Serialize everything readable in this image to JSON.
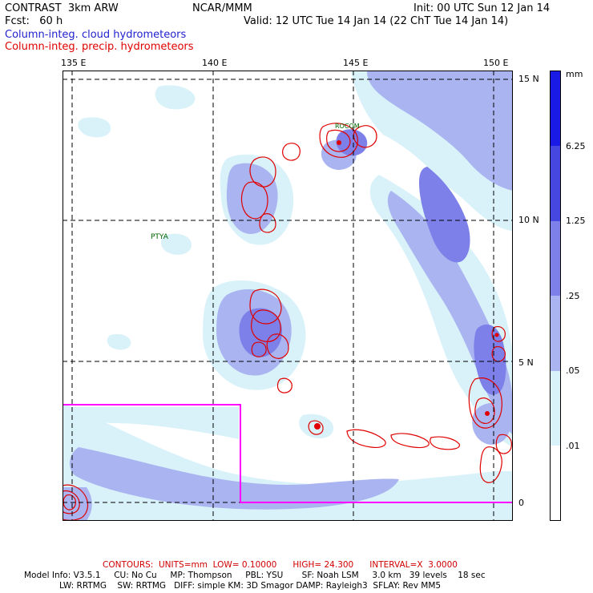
{
  "header": {
    "title": "CONTRAST  3km ARW",
    "org": "NCAR/MMM",
    "init": "Init: 00 UTC Sun 12 Jan 14",
    "fcst": "Fcst:   60 h",
    "valid": "Valid: 12 UTC Tue 14 Jan 14 (22 ChT Tue 14 Jan 14)",
    "field1": "Column-integ. cloud hydrometeors",
    "field2": "Column-integ. precip. hydrometeors"
  },
  "map": {
    "lon_labels": [
      "135 E",
      "140 E",
      "145 E",
      "150 E"
    ],
    "lat_labels": [
      "15 N",
      "10 N",
      "5 N",
      "0"
    ],
    "place_label": "PTYA",
    "region_label": "ROCOM"
  },
  "legend": {
    "unit": "mm",
    "levels": [
      "6.25",
      "1.25",
      ".25",
      ".05",
      ".01"
    ],
    "colors": [
      "#1a1ae6",
      "#4646e0",
      "#7c80e8",
      "#a9b4f0",
      "#d9f2fa",
      "#ffffff"
    ]
  },
  "footer": {
    "contours": "CONTOURS:  UNITS=mm  LOW= 0.10000      HIGH= 24.300      INTERVAL=X  3.0000",
    "model_line1": "Model Info: V3.5.1     CU: No Cu     MP: Thompson     PBL: YSU       SF: Noah LSM     3.0 km   39 levels    18 sec",
    "model_line2": "LW: RRTMG    SW: RRTMG   DIFF: simple KM: 3D Smagor DAMP: Rayleigh3  SFLAY: Rev MM5"
  },
  "colors": {
    "light": "#d9f2fa",
    "mid": "#a9b4f0",
    "dark": "#7c80e8",
    "contour": "#e00000",
    "box": "#ff00ff"
  }
}
